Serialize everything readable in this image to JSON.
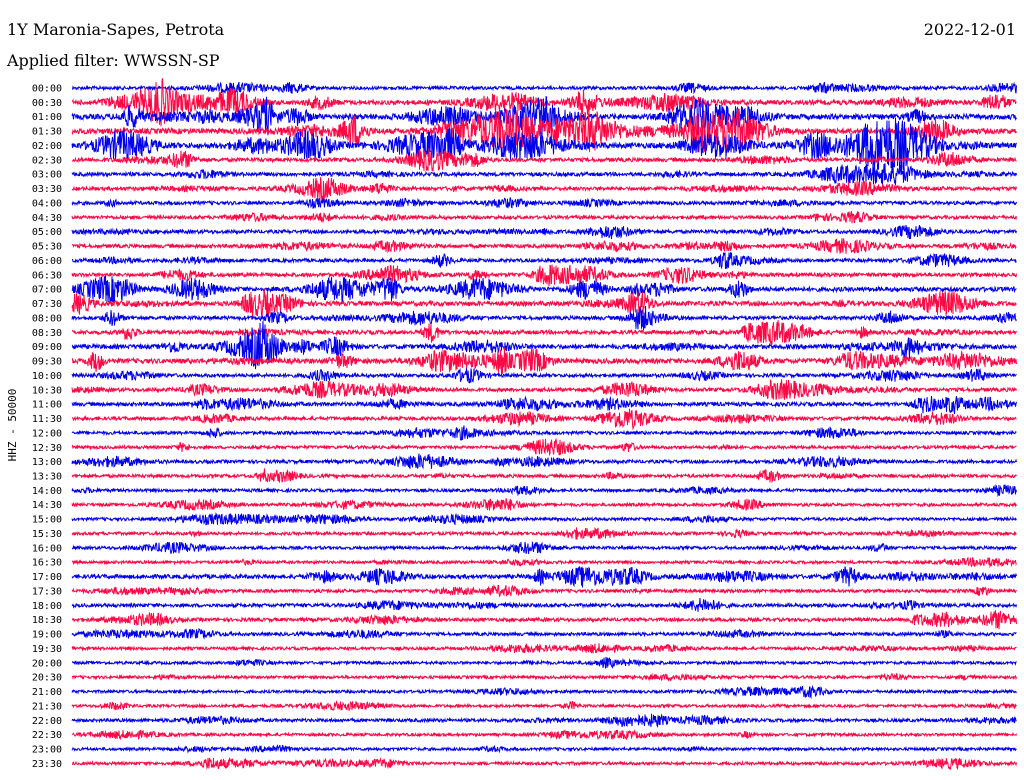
{
  "header": {
    "title": "1Y Maronia-Sapes, Petrota",
    "filter": "Applied filter: WWSSN-SP",
    "date": "2022-12-01"
  },
  "chart_data": {
    "type": "line",
    "ylabel": "HHZ - 50000",
    "colors": [
      "#0000ee",
      "#ff0844"
    ],
    "row_labels": [
      "00:00",
      "00:30",
      "01:00",
      "01:30",
      "02:00",
      "02:30",
      "03:00",
      "03:30",
      "04:00",
      "04:30",
      "05:00",
      "05:30",
      "06:00",
      "06:30",
      "07:00",
      "07:30",
      "08:00",
      "08:30",
      "09:00",
      "09:30",
      "10:00",
      "10:30",
      "11:00",
      "11:30",
      "12:00",
      "12:30",
      "13:00",
      "13:30",
      "14:00",
      "14:30",
      "15:00",
      "15:30",
      "16:00",
      "16:30",
      "17:00",
      "17:30",
      "18:00",
      "18:30",
      "19:00",
      "19:30",
      "20:00",
      "20:30",
      "21:00",
      "21:30",
      "22:00",
      "22:30",
      "23:00",
      "23:30"
    ],
    "activity": [
      1.0,
      2.4,
      3.0,
      3.2,
      3.0,
      1.6,
      1.5,
      1.4,
      1.2,
      1.1,
      1.3,
      1.4,
      1.2,
      1.5,
      2.2,
      2.3,
      1.5,
      1.8,
      2.2,
      2.6,
      1.2,
      1.4,
      1.6,
      1.3,
      0.9,
      0.8,
      1.1,
      1.0,
      0.8,
      0.8,
      0.7,
      0.8,
      0.8,
      0.6,
      1.8,
      1.0,
      1.2,
      1.2,
      1.0,
      0.7,
      0.6,
      0.6,
      0.6,
      0.6,
      1.0,
      0.6,
      0.6,
      0.7
    ]
  }
}
